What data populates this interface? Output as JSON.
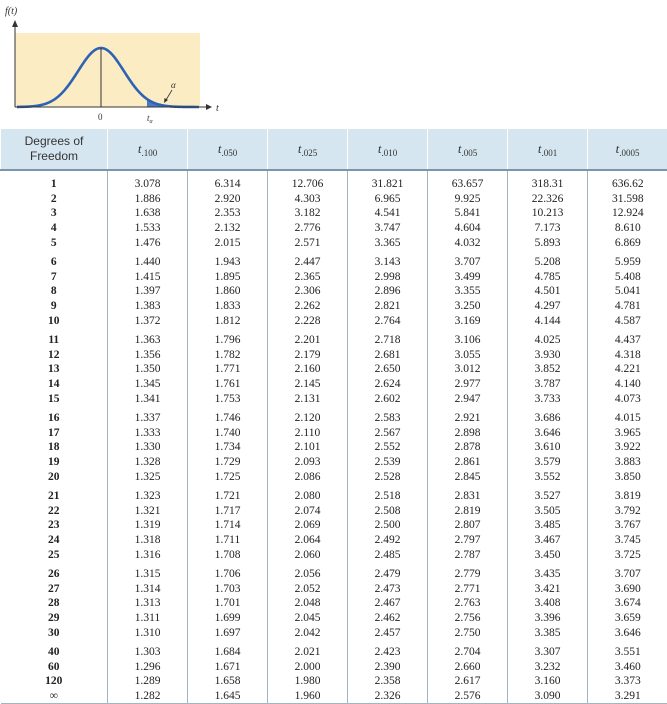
{
  "figure": {
    "y_axis_label": "f(t)",
    "x_axis_label": "t",
    "zero_label": "0",
    "alpha_label": "α",
    "t_alpha_label": "t",
    "t_alpha_sub": "α",
    "curve_color": "#2e63b4",
    "fill_color": "#4a78c2",
    "panel_color": "#fbecc4"
  },
  "table": {
    "header_label_line1": "Degrees of",
    "header_label_line2": "Freedom",
    "columns": [
      {
        "symbol": "t",
        "sub": ".100"
      },
      {
        "symbol": "t",
        "sub": ".050"
      },
      {
        "symbol": "t",
        "sub": ".025"
      },
      {
        "symbol": "t",
        "sub": ".010"
      },
      {
        "symbol": "t",
        "sub": ".005"
      },
      {
        "symbol": "t",
        "sub": ".001"
      },
      {
        "symbol": "t",
        "sub": ".0005"
      }
    ],
    "rows": [
      [
        "1",
        "3.078",
        "6.314",
        "12.706",
        "31.821",
        "63.657",
        "318.31",
        "636.62"
      ],
      [
        "2",
        "1.886",
        "2.920",
        "4.303",
        "6.965",
        "9.925",
        "22.326",
        "31.598"
      ],
      [
        "3",
        "1.638",
        "2.353",
        "3.182",
        "4.541",
        "5.841",
        "10.213",
        "12.924"
      ],
      [
        "4",
        "1.533",
        "2.132",
        "2.776",
        "3.747",
        "4.604",
        "7.173",
        "8.610"
      ],
      [
        "5",
        "1.476",
        "2.015",
        "2.571",
        "3.365",
        "4.032",
        "5.893",
        "6.869"
      ],
      [
        "6",
        "1.440",
        "1.943",
        "2.447",
        "3.143",
        "3.707",
        "5.208",
        "5.959"
      ],
      [
        "7",
        "1.415",
        "1.895",
        "2.365",
        "2.998",
        "3.499",
        "4.785",
        "5.408"
      ],
      [
        "8",
        "1.397",
        "1.860",
        "2.306",
        "2.896",
        "3.355",
        "4.501",
        "5.041"
      ],
      [
        "9",
        "1.383",
        "1.833",
        "2.262",
        "2.821",
        "3.250",
        "4.297",
        "4.781"
      ],
      [
        "10",
        "1.372",
        "1.812",
        "2.228",
        "2.764",
        "3.169",
        "4.144",
        "4.587"
      ],
      [
        "11",
        "1.363",
        "1.796",
        "2.201",
        "2.718",
        "3.106",
        "4.025",
        "4.437"
      ],
      [
        "12",
        "1.356",
        "1.782",
        "2.179",
        "2.681",
        "3.055",
        "3.930",
        "4.318"
      ],
      [
        "13",
        "1.350",
        "1.771",
        "2.160",
        "2.650",
        "3.012",
        "3.852",
        "4.221"
      ],
      [
        "14",
        "1.345",
        "1.761",
        "2.145",
        "2.624",
        "2.977",
        "3.787",
        "4.140"
      ],
      [
        "15",
        "1.341",
        "1.753",
        "2.131",
        "2.602",
        "2.947",
        "3.733",
        "4.073"
      ],
      [
        "16",
        "1.337",
        "1.746",
        "2.120",
        "2.583",
        "2.921",
        "3.686",
        "4.015"
      ],
      [
        "17",
        "1.333",
        "1.740",
        "2.110",
        "2.567",
        "2.898",
        "3.646",
        "3.965"
      ],
      [
        "18",
        "1.330",
        "1.734",
        "2.101",
        "2.552",
        "2.878",
        "3.610",
        "3.922"
      ],
      [
        "19",
        "1.328",
        "1.729",
        "2.093",
        "2.539",
        "2.861",
        "3.579",
        "3.883"
      ],
      [
        "20",
        "1.325",
        "1.725",
        "2.086",
        "2.528",
        "2.845",
        "3.552",
        "3.850"
      ],
      [
        "21",
        "1.323",
        "1.721",
        "2.080",
        "2.518",
        "2.831",
        "3.527",
        "3.819"
      ],
      [
        "22",
        "1.321",
        "1.717",
        "2.074",
        "2.508",
        "2.819",
        "3.505",
        "3.792"
      ],
      [
        "23",
        "1.319",
        "1.714",
        "2.069",
        "2.500",
        "2.807",
        "3.485",
        "3.767"
      ],
      [
        "24",
        "1.318",
        "1.711",
        "2.064",
        "2.492",
        "2.797",
        "3.467",
        "3.745"
      ],
      [
        "25",
        "1.316",
        "1.708",
        "2.060",
        "2.485",
        "2.787",
        "3.450",
        "3.725"
      ],
      [
        "26",
        "1.315",
        "1.706",
        "2.056",
        "2.479",
        "2.779",
        "3.435",
        "3.707"
      ],
      [
        "27",
        "1.314",
        "1.703",
        "2.052",
        "2.473",
        "2.771",
        "3.421",
        "3.690"
      ],
      [
        "28",
        "1.313",
        "1.701",
        "2.048",
        "2.467",
        "2.763",
        "3.408",
        "3.674"
      ],
      [
        "29",
        "1.311",
        "1.699",
        "2.045",
        "2.462",
        "2.756",
        "3.396",
        "3.659"
      ],
      [
        "30",
        "1.310",
        "1.697",
        "2.042",
        "2.457",
        "2.750",
        "3.385",
        "3.646"
      ],
      [
        "40",
        "1.303",
        "1.684",
        "2.021",
        "2.423",
        "2.704",
        "3.307",
        "3.551"
      ],
      [
        "60",
        "1.296",
        "1.671",
        "2.000",
        "2.390",
        "2.660",
        "3.232",
        "3.460"
      ],
      [
        "120",
        "1.289",
        "1.658",
        "1.980",
        "2.358",
        "2.617",
        "3.160",
        "3.373"
      ],
      [
        "∞",
        "1.282",
        "1.645",
        "1.960",
        "2.326",
        "2.576",
        "3.090",
        "3.291"
      ]
    ]
  }
}
